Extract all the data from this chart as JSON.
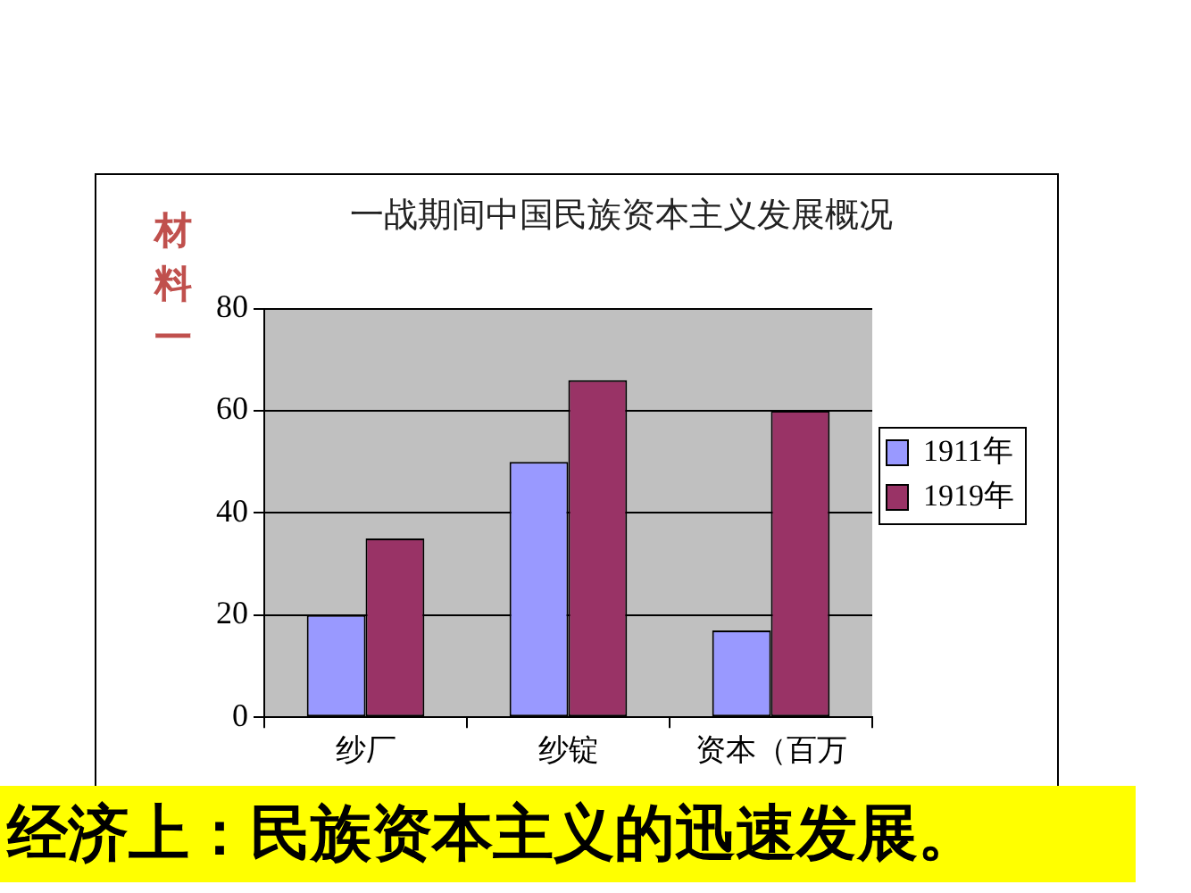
{
  "chart_data": {
    "type": "bar",
    "title": "一战期间中国民族资本主义发展概况",
    "categories": [
      "纱厂",
      "纱锭",
      "资本（百万"
    ],
    "series": [
      {
        "name": "1911年",
        "color": "#9999ff",
        "values": [
          20,
          50,
          17
        ]
      },
      {
        "name": "1919年",
        "color": "#993366",
        "values": [
          35,
          66,
          60
        ]
      }
    ],
    "ylim": [
      0,
      80
    ],
    "yticks": [
      0,
      20,
      40,
      60,
      80
    ],
    "grid": "y",
    "legend": "right",
    "annotations": [
      "材料一",
      "经济上：民族资本主义的迅速发展。"
    ]
  }
}
